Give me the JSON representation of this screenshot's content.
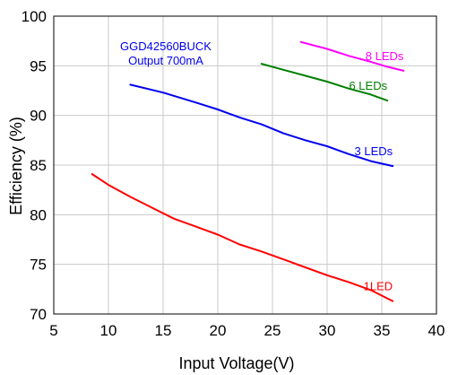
{
  "chart_data": {
    "type": "line",
    "xlabel": "Input Voltage(V)",
    "ylabel": "Efficiency (%)",
    "xlim": [
      5,
      40
    ],
    "ylim": [
      70,
      100
    ],
    "xticks": [
      5,
      10,
      15,
      20,
      25,
      30,
      35,
      40
    ],
    "yticks": [
      70,
      75,
      80,
      85,
      90,
      95,
      100
    ],
    "grid": true,
    "legend": "none",
    "annotation": [
      "GGD42560BUCK",
      "Output  700mA"
    ],
    "series": [
      {
        "name": "8 LEDs",
        "color": "#ff00ff",
        "x": [
          27.6,
          30,
          32,
          34,
          35.5,
          37
        ],
        "y": [
          97.4,
          96.7,
          96,
          95.4,
          94.9,
          94.5
        ]
      },
      {
        "name": "6 LEDs",
        "color": "#008000",
        "x": [
          24,
          26,
          28,
          30,
          32,
          34,
          35.5
        ],
        "y": [
          95.2,
          94.6,
          94,
          93.4,
          92.7,
          92.1,
          91.5
        ]
      },
      {
        "name": "3 LEDs",
        "color": "#0000ee",
        "x": [
          12,
          15,
          18,
          20,
          22,
          24,
          26,
          28,
          30,
          32,
          34,
          36
        ],
        "y": [
          93.1,
          92.3,
          91.3,
          90.6,
          89.8,
          89.1,
          88.2,
          87.5,
          86.9,
          86.1,
          85.4,
          84.9
        ]
      },
      {
        "name": "1LED",
        "color": "#ff0000",
        "x": [
          8.5,
          10,
          12,
          14,
          16,
          18,
          20,
          22,
          24,
          26,
          28,
          30,
          32,
          34,
          36
        ],
        "y": [
          84.1,
          83.0,
          81.8,
          80.7,
          79.6,
          78.8,
          78.0,
          77.0,
          76.3,
          75.5,
          74.7,
          73.9,
          73.2,
          72.4,
          71.3
        ]
      }
    ]
  }
}
